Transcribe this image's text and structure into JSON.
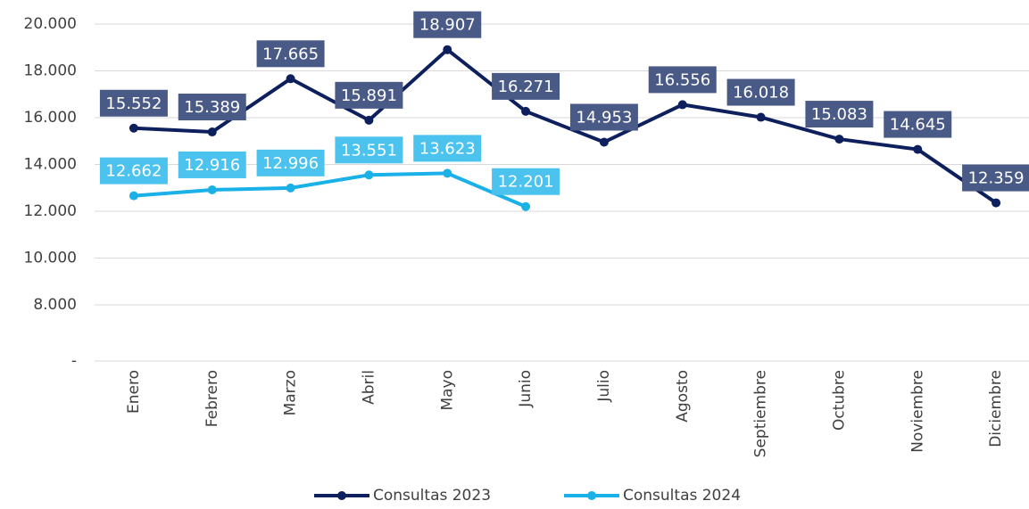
{
  "chart_data": {
    "type": "line",
    "categories": [
      "Enero",
      "Febrero",
      "Marzo",
      "Abril",
      "Mayo",
      "Junio",
      "Julio",
      "Agosto",
      "Septiembre",
      "Octubre",
      "Noviembre",
      "Diciembre"
    ],
    "series": [
      {
        "name": "Consultas 2023",
        "color": "#0d1f5c",
        "label_color": "#4a5a87",
        "values": [
          15552,
          15389,
          17665,
          15891,
          18907,
          16271,
          14953,
          16556,
          16018,
          15083,
          14645,
          12359
        ],
        "value_labels": [
          "15.552",
          "15.389",
          "17.665",
          "15.891",
          "18.907",
          "16.271",
          "14.953",
          "16.556",
          "16.018",
          "15.083",
          "14.645",
          "12.359"
        ]
      },
      {
        "name": "Consultas 2024",
        "color": "#1ab0e8",
        "label_color": "#4cc3ee",
        "values": [
          12662,
          12916,
          12996,
          13551,
          13623,
          12201,
          null,
          null,
          null,
          null,
          null,
          null
        ],
        "value_labels": [
          "12.662",
          "12.916",
          "12.996",
          "13.551",
          "13.623",
          "12.201",
          null,
          null,
          null,
          null,
          null,
          null
        ]
      }
    ],
    "ylim": [
      5600,
      20000
    ],
    "yticks": [
      {
        "value": 5600,
        "label": "-"
      },
      {
        "value": 8000,
        "label": "8.000"
      },
      {
        "value": 10000,
        "label": "10.000"
      },
      {
        "value": 12000,
        "label": "12.000"
      },
      {
        "value": 14000,
        "label": "14.000"
      },
      {
        "value": 16000,
        "label": "16.000"
      },
      {
        "value": 18000,
        "label": "18.000"
      },
      {
        "value": 20000,
        "label": "20.000"
      }
    ],
    "grid": true,
    "legend": "bottom"
  }
}
